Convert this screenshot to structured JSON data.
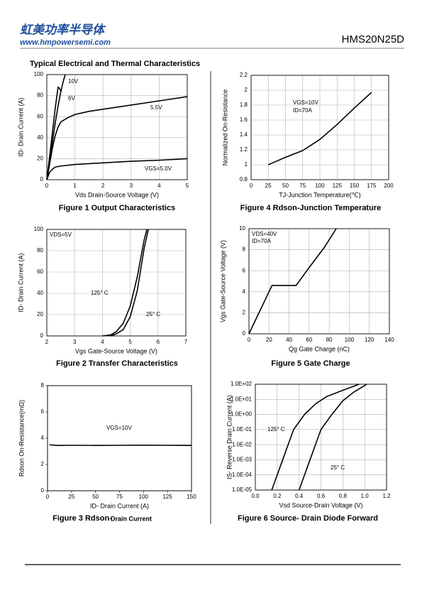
{
  "header": {
    "logo": "虹美功率半导体",
    "website": "www.hmpowersemi.com",
    "part": "HMS20N25D"
  },
  "section_title": "Typical Electrical and Thermal Characteristics",
  "chart_data": [
    {
      "type": "line",
      "title": "Figure 1 Output Characteristics",
      "xlabel": "Vds Drain-Source Voltage (V)",
      "ylabel": "ID- Drain Current (A)",
      "xlim": [
        0,
        5
      ],
      "ylim": [
        0,
        100
      ],
      "xticks": [
        0,
        1,
        2,
        3,
        4,
        5
      ],
      "yticks": [
        0,
        20,
        40,
        60,
        80,
        100
      ],
      "grid": true,
      "series": [
        {
          "name": "10V",
          "color": "#000000",
          "x": [
            0,
            0.1,
            0.2,
            0.3,
            0.4,
            0.5,
            0.6,
            0.66
          ],
          "values": [
            0,
            18,
            36,
            54,
            70,
            84,
            95,
            100
          ]
        },
        {
          "name": "6V",
          "color": "#000000",
          "x": [
            0,
            0.1,
            0.2,
            0.3,
            0.4,
            0.45,
            0.5
          ],
          "values": [
            0,
            22,
            45,
            68,
            88,
            87,
            84
          ]
        },
        {
          "name": "5.5V",
          "color": "#000000",
          "x": [
            0,
            0.1,
            0.2,
            0.3,
            0.4,
            0.5,
            0.75,
            1,
            1.5,
            2,
            3,
            4,
            5
          ],
          "values": [
            0,
            15,
            30,
            42,
            50,
            55,
            59,
            62,
            65,
            67,
            71,
            75,
            79
          ]
        },
        {
          "name": "VGS=5.0V",
          "color": "#000000",
          "x": [
            0,
            0.1,
            0.2,
            0.3,
            0.5,
            1,
            2,
            3,
            4,
            5
          ],
          "values": [
            0,
            7,
            10,
            12,
            13,
            14.5,
            16,
            17.5,
            18.5,
            20
          ]
        }
      ]
    },
    {
      "type": "line",
      "title": "Figure 2 Transfer Characteristics",
      "xlabel": "Vgs Gate-Source Voltage (V)",
      "ylabel": "ID- Drain Current (A)",
      "xlim": [
        2,
        7
      ],
      "ylim": [
        0,
        100
      ],
      "xticks": [
        2,
        3,
        4,
        5,
        6,
        7
      ],
      "yticks": [
        0,
        20,
        40,
        60,
        80,
        100
      ],
      "grid": true,
      "annotations": [
        "VDS=5V"
      ],
      "series": [
        {
          "name": "125° C",
          "color": "#000000",
          "x": [
            4.0,
            4.3,
            4.5,
            4.75,
            5.0,
            5.25,
            5.5,
            5.6
          ],
          "values": [
            0,
            1,
            4,
            12,
            28,
            55,
            90,
            100
          ]
        },
        {
          "name": "25° C",
          "color": "#000000",
          "x": [
            4.3,
            4.5,
            4.75,
            5.0,
            5.25,
            5.5,
            5.65
          ],
          "values": [
            0,
            2,
            6,
            18,
            42,
            82,
            100
          ]
        }
      ]
    },
    {
      "type": "line",
      "title": "Figure 3 Rdson-",
      "title_sub": "Drain Current",
      "xlabel": "ID- Drain Current (A)",
      "ylabel": "Rdson On-Resistance(mΩ)",
      "xlim": [
        0,
        150
      ],
      "ylim": [
        0,
        8
      ],
      "xticks": [
        0,
        25,
        50,
        75,
        100,
        125,
        150
      ],
      "yticks": [
        0,
        2,
        4,
        6,
        8
      ],
      "grid": false,
      "annotations": [
        "VGS=10V"
      ],
      "series": [
        {
          "color": "#000000",
          "x": [
            2,
            10,
            25,
            50,
            75,
            100,
            125,
            150
          ],
          "values": [
            3.5,
            3.45,
            3.46,
            3.45,
            3.46,
            3.47,
            3.46,
            3.45
          ]
        }
      ]
    },
    {
      "type": "line",
      "title": "Figure 4 Rdson-Junction Temperature",
      "xlabel": "TJ-Junction Temperature(℃)",
      "ylabel": "Normalized On-Resistance",
      "xlim": [
        0,
        200
      ],
      "ylim": [
        0.8,
        2.2
      ],
      "xticks": [
        0,
        25,
        50,
        75,
        100,
        125,
        150,
        175,
        200
      ],
      "yticks": [
        0.8,
        1,
        1.2,
        1.4,
        1.6,
        1.8,
        2,
        2.2
      ],
      "grid": true,
      "annotations": [
        "VGS=10V",
        "ID=70A"
      ],
      "series": [
        {
          "color": "#000000",
          "x": [
            25,
            50,
            75,
            100,
            125,
            150,
            175
          ],
          "values": [
            1.0,
            1.1,
            1.19,
            1.34,
            1.54,
            1.76,
            1.97
          ]
        }
      ]
    },
    {
      "type": "line",
      "title": "Figure 5 Gate Charge",
      "xlabel": "Qg Gate Charge (nC)",
      "ylabel": "Vgs Gate-Source Voltage (V)",
      "xlim": [
        0,
        140
      ],
      "ylim": [
        0,
        10
      ],
      "xticks": [
        0,
        20,
        40,
        60,
        80,
        100,
        120,
        140
      ],
      "yticks": [
        0,
        2,
        4,
        6,
        8,
        10
      ],
      "grid": true,
      "annotations": [
        "VDS=40V",
        "ID=70A"
      ],
      "series": [
        {
          "color": "#000000",
          "x": [
            0,
            10,
            20,
            23,
            47,
            60,
            75,
            87
          ],
          "values": [
            0,
            2,
            4,
            4.6,
            4.6,
            6.3,
            8.2,
            10
          ]
        }
      ]
    },
    {
      "type": "line",
      "title": "Figure 6 Source- Drain Diode Forward",
      "xlabel": "Vsd Source-Drain Voltage (V)",
      "ylabel": "IS- Reverse Drain Current (A)",
      "xlim": [
        0,
        1.2
      ],
      "ylim": [
        1e-05,
        100
      ],
      "log_y": true,
      "grid": true,
      "xticks": [
        {
          "value": 0,
          "label": "0.0"
        },
        0.2,
        0.4,
        0.6,
        0.8,
        {
          "value": 1,
          "label": "1.0"
        },
        1.2
      ],
      "yticks": [
        {
          "value": 1e-05,
          "label": "1.0E-05"
        },
        {
          "value": 0.0001,
          "label": "1.0E-04"
        },
        {
          "value": 0.001,
          "label": "1.0E-03"
        },
        {
          "value": 0.01,
          "label": "1.0E-02"
        },
        {
          "value": 0.1,
          "label": "1.0E-01"
        },
        {
          "value": 1,
          "label": "1.0E+00"
        },
        {
          "value": 10,
          "label": "1.0E+01"
        },
        {
          "value": 100,
          "label": "1.0E+02"
        }
      ],
      "series": [
        {
          "name": "125° C",
          "color": "#000000",
          "x": [
            0.15,
            0.25,
            0.35,
            0.45,
            0.55,
            0.65,
            0.8,
            0.95
          ],
          "values": [
            1e-05,
            0.001,
            0.1,
            1,
            5,
            15,
            40,
            100
          ]
        },
        {
          "name": "25° C",
          "color": "#000000",
          "x": [
            0.4,
            0.5,
            0.6,
            0.7,
            0.8,
            0.9,
            1.02
          ],
          "values": [
            1e-05,
            0.001,
            0.1,
            1,
            8,
            30,
            100
          ]
        }
      ]
    }
  ]
}
